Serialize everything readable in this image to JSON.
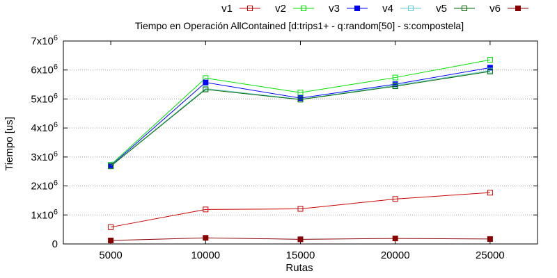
{
  "chart_data": {
    "type": "line",
    "title": "Tiempo en Operación AllContained [d:trips1+ - q:random[50] - s:compostela]",
    "xlabel": "Rutas",
    "ylabel": "Tiempo [us]",
    "x": [
      5000,
      10000,
      15000,
      20000,
      25000
    ],
    "xlim": [
      2500,
      27500
    ],
    "ylim": [
      0,
      7000000
    ],
    "x_ticks": [
      "5000",
      "10000",
      "15000",
      "20000",
      "25000"
    ],
    "y_ticks": [
      {
        "value": 0,
        "mantissa": "0",
        "exponent": ""
      },
      {
        "value": 1000000,
        "mantissa": "1x10",
        "exponent": "6"
      },
      {
        "value": 2000000,
        "mantissa": "2x10",
        "exponent": "6"
      },
      {
        "value": 3000000,
        "mantissa": "3x10",
        "exponent": "6"
      },
      {
        "value": 4000000,
        "mantissa": "4x10",
        "exponent": "6"
      },
      {
        "value": 5000000,
        "mantissa": "5x10",
        "exponent": "6"
      },
      {
        "value": 6000000,
        "mantissa": "6x10",
        "exponent": "6"
      },
      {
        "value": 7000000,
        "mantissa": "7x10",
        "exponent": "6"
      }
    ],
    "grid": "horizontal dotted",
    "legend_position": "top-right",
    "series": [
      {
        "name": "v1",
        "color": "#cc0000",
        "marker": "open-square",
        "values": [
          580000,
          1190000,
          1210000,
          1550000,
          1770000
        ]
      },
      {
        "name": "v2",
        "color": "#00e000",
        "marker": "open-square",
        "values": [
          2730000,
          5720000,
          5220000,
          5740000,
          6350000
        ]
      },
      {
        "name": "v3",
        "color": "#0000ff",
        "marker": "filled-square",
        "values": [
          2700000,
          5570000,
          5030000,
          5510000,
          6080000
        ]
      },
      {
        "name": "v4",
        "color": "#66cccc",
        "marker": "open-square",
        "values": [
          2690000,
          5360000,
          4990000,
          5470000,
          5980000
        ]
      },
      {
        "name": "v5",
        "color": "#006600",
        "marker": "open-square",
        "values": [
          2680000,
          5330000,
          4980000,
          5440000,
          5950000
        ]
      },
      {
        "name": "v6",
        "color": "#880000",
        "marker": "filled-square",
        "values": [
          120000,
          210000,
          160000,
          190000,
          170000
        ]
      }
    ]
  }
}
